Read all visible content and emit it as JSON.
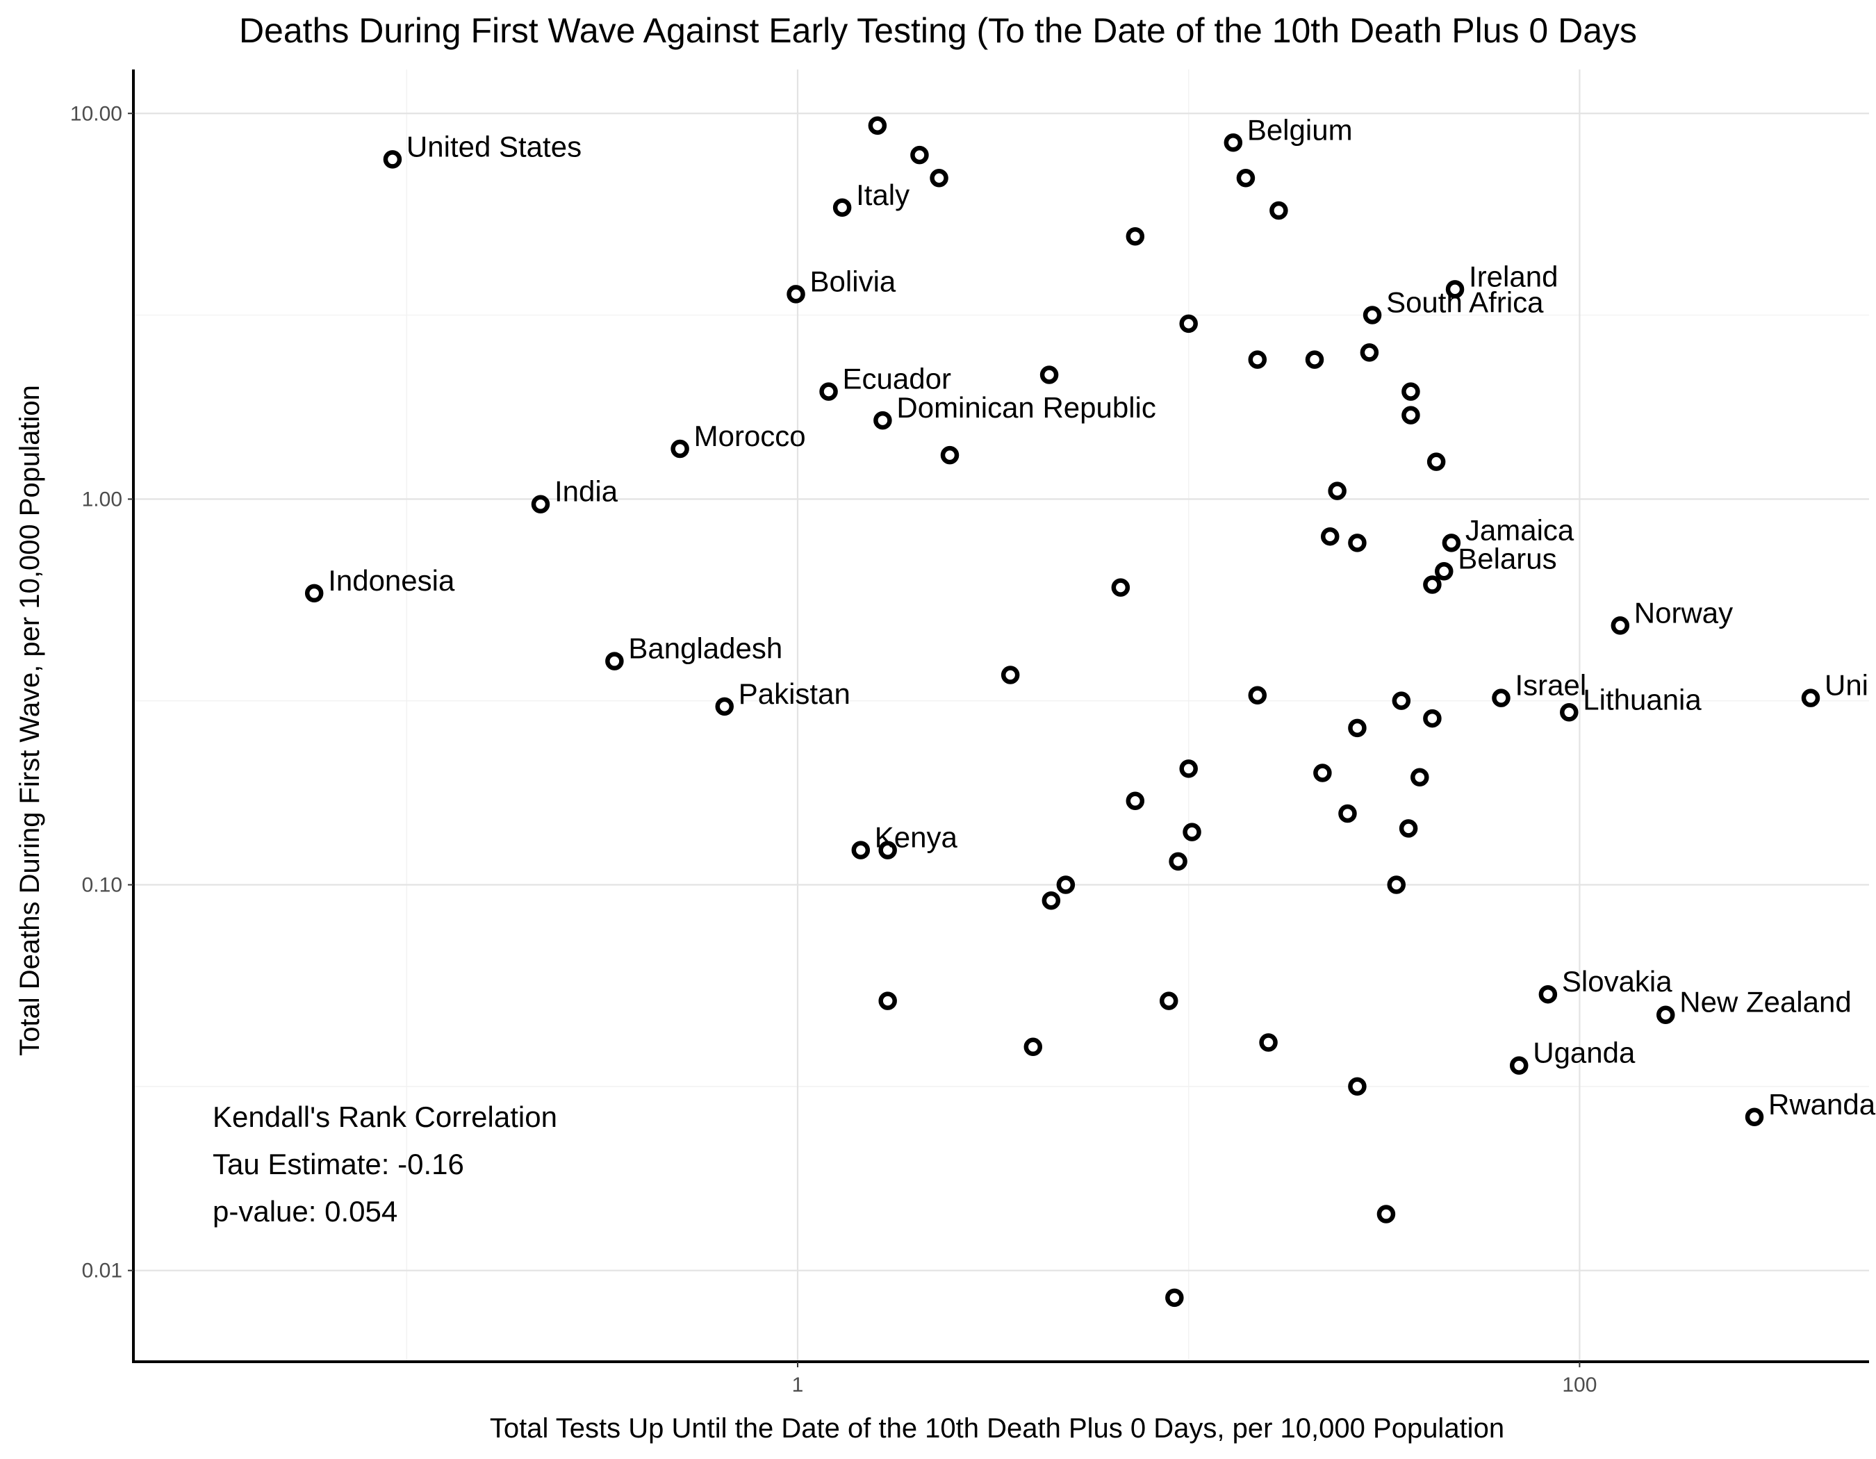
{
  "chart_data": {
    "type": "scatter",
    "title": "Deaths During First Wave Against  Early Testing (To the Date of the 10th Death Plus 0 Days",
    "xlabel": "Total Tests Up Until the Date of the 10th Death Plus 0 Days, per 10,000 Population",
    "ylabel": "Total Deaths During First Wave, per 10,000 Population",
    "x_scale": "log10",
    "y_scale": "log10",
    "xlim": [
      0.02,
      550
    ],
    "ylim": [
      0.0058,
      13
    ],
    "x_major_ticks": [
      1,
      100
    ],
    "x_tick_labels": [
      "1",
      "100"
    ],
    "x_minor_ticks": [
      0.1,
      10
    ],
    "y_major_ticks": [
      0.01,
      0.1,
      1,
      10
    ],
    "y_tick_labels": [
      "0.01",
      "0.10",
      "1.00",
      "10.00"
    ],
    "y_minor_ticks": [
      0.03,
      0.3,
      3
    ],
    "grid": true,
    "points": [
      {
        "x": 0.092,
        "y": 7.6,
        "label": "United States"
      },
      {
        "x": 1.6,
        "y": 9.3,
        "label": ""
      },
      {
        "x": 2.05,
        "y": 7.8,
        "label": ""
      },
      {
        "x": 1.3,
        "y": 5.7,
        "label": "Italy"
      },
      {
        "x": 2.3,
        "y": 6.8,
        "label": ""
      },
      {
        "x": 13,
        "y": 8.4,
        "label": "Belgium"
      },
      {
        "x": 14,
        "y": 6.8,
        "label": ""
      },
      {
        "x": 17,
        "y": 5.6,
        "label": ""
      },
      {
        "x": 7.3,
        "y": 4.8,
        "label": ""
      },
      {
        "x": 0.99,
        "y": 3.4,
        "label": "Bolivia"
      },
      {
        "x": 48,
        "y": 3.5,
        "label": "Ireland"
      },
      {
        "x": 29.5,
        "y": 3.0,
        "label": "South Africa"
      },
      {
        "x": 10,
        "y": 2.85,
        "label": ""
      },
      {
        "x": 15,
        "y": 2.3,
        "label": ""
      },
      {
        "x": 21,
        "y": 2.3,
        "label": ""
      },
      {
        "x": 29,
        "y": 2.4,
        "label": ""
      },
      {
        "x": 1.2,
        "y": 1.9,
        "label": "Ecuador"
      },
      {
        "x": 4.4,
        "y": 2.1,
        "label": ""
      },
      {
        "x": 37,
        "y": 1.9,
        "label": ""
      },
      {
        "x": 37,
        "y": 1.65,
        "label": ""
      },
      {
        "x": 1.65,
        "y": 1.6,
        "label": "Dominican Republic"
      },
      {
        "x": 0.5,
        "y": 1.35,
        "label": "Morocco"
      },
      {
        "x": 2.45,
        "y": 1.3,
        "label": ""
      },
      {
        "x": 43,
        "y": 1.25,
        "label": ""
      },
      {
        "x": 0.22,
        "y": 0.97,
        "label": "India"
      },
      {
        "x": 24,
        "y": 1.05,
        "label": ""
      },
      {
        "x": 23,
        "y": 0.8,
        "label": ""
      },
      {
        "x": 27,
        "y": 0.77,
        "label": ""
      },
      {
        "x": 47,
        "y": 0.77,
        "label": "Jamaica"
      },
      {
        "x": 45,
        "y": 0.65,
        "label": "Belarus"
      },
      {
        "x": 42,
        "y": 0.6,
        "label": ""
      },
      {
        "x": 0.058,
        "y": 0.57,
        "label": "Indonesia"
      },
      {
        "x": 6.7,
        "y": 0.59,
        "label": ""
      },
      {
        "x": 127,
        "y": 0.47,
        "label": "Norway"
      },
      {
        "x": 0.34,
        "y": 0.38,
        "label": "Bangladesh"
      },
      {
        "x": 3.5,
        "y": 0.35,
        "label": ""
      },
      {
        "x": 0.65,
        "y": 0.29,
        "label": "Pakistan"
      },
      {
        "x": 15,
        "y": 0.31,
        "label": ""
      },
      {
        "x": 35,
        "y": 0.3,
        "label": ""
      },
      {
        "x": 63,
        "y": 0.305,
        "label": "Israel"
      },
      {
        "x": 94,
        "y": 0.28,
        "label": "Lithuania"
      },
      {
        "x": 390,
        "y": 0.305,
        "label": "United Kingdom",
        "visible_label": "Uni"
      },
      {
        "x": 42,
        "y": 0.27,
        "label": ""
      },
      {
        "x": 27,
        "y": 0.255,
        "label": ""
      },
      {
        "x": 10,
        "y": 0.2,
        "label": ""
      },
      {
        "x": 22,
        "y": 0.195,
        "label": ""
      },
      {
        "x": 39,
        "y": 0.19,
        "label": ""
      },
      {
        "x": 7.3,
        "y": 0.165,
        "label": ""
      },
      {
        "x": 25.5,
        "y": 0.153,
        "label": ""
      },
      {
        "x": 10.2,
        "y": 0.137,
        "label": ""
      },
      {
        "x": 36.5,
        "y": 0.14,
        "label": ""
      },
      {
        "x": 1.45,
        "y": 0.123,
        "label": "Kenya"
      },
      {
        "x": 1.7,
        "y": 0.123,
        "label": ""
      },
      {
        "x": 9.4,
        "y": 0.115,
        "label": ""
      },
      {
        "x": 4.85,
        "y": 0.1,
        "label": ""
      },
      {
        "x": 4.45,
        "y": 0.091,
        "label": ""
      },
      {
        "x": 34,
        "y": 0.1,
        "label": ""
      },
      {
        "x": 83,
        "y": 0.052,
        "label": "Slovakia"
      },
      {
        "x": 166,
        "y": 0.046,
        "label": "New Zealand"
      },
      {
        "x": 1.7,
        "y": 0.05,
        "label": ""
      },
      {
        "x": 8.9,
        "y": 0.05,
        "label": ""
      },
      {
        "x": 4.0,
        "y": 0.038,
        "label": ""
      },
      {
        "x": 16,
        "y": 0.039,
        "label": ""
      },
      {
        "x": 70,
        "y": 0.034,
        "label": "Uganda"
      },
      {
        "x": 27,
        "y": 0.03,
        "label": ""
      },
      {
        "x": 280,
        "y": 0.025,
        "label": "Rwanda"
      },
      {
        "x": 32,
        "y": 0.014,
        "label": ""
      },
      {
        "x": 9.2,
        "y": 0.0085,
        "label": ""
      }
    ],
    "annotation": {
      "line1": "Kendall's Rank Correlation",
      "line2": "Tau Estimate: -0.16",
      "line3": "p-value: 0.054"
    }
  }
}
